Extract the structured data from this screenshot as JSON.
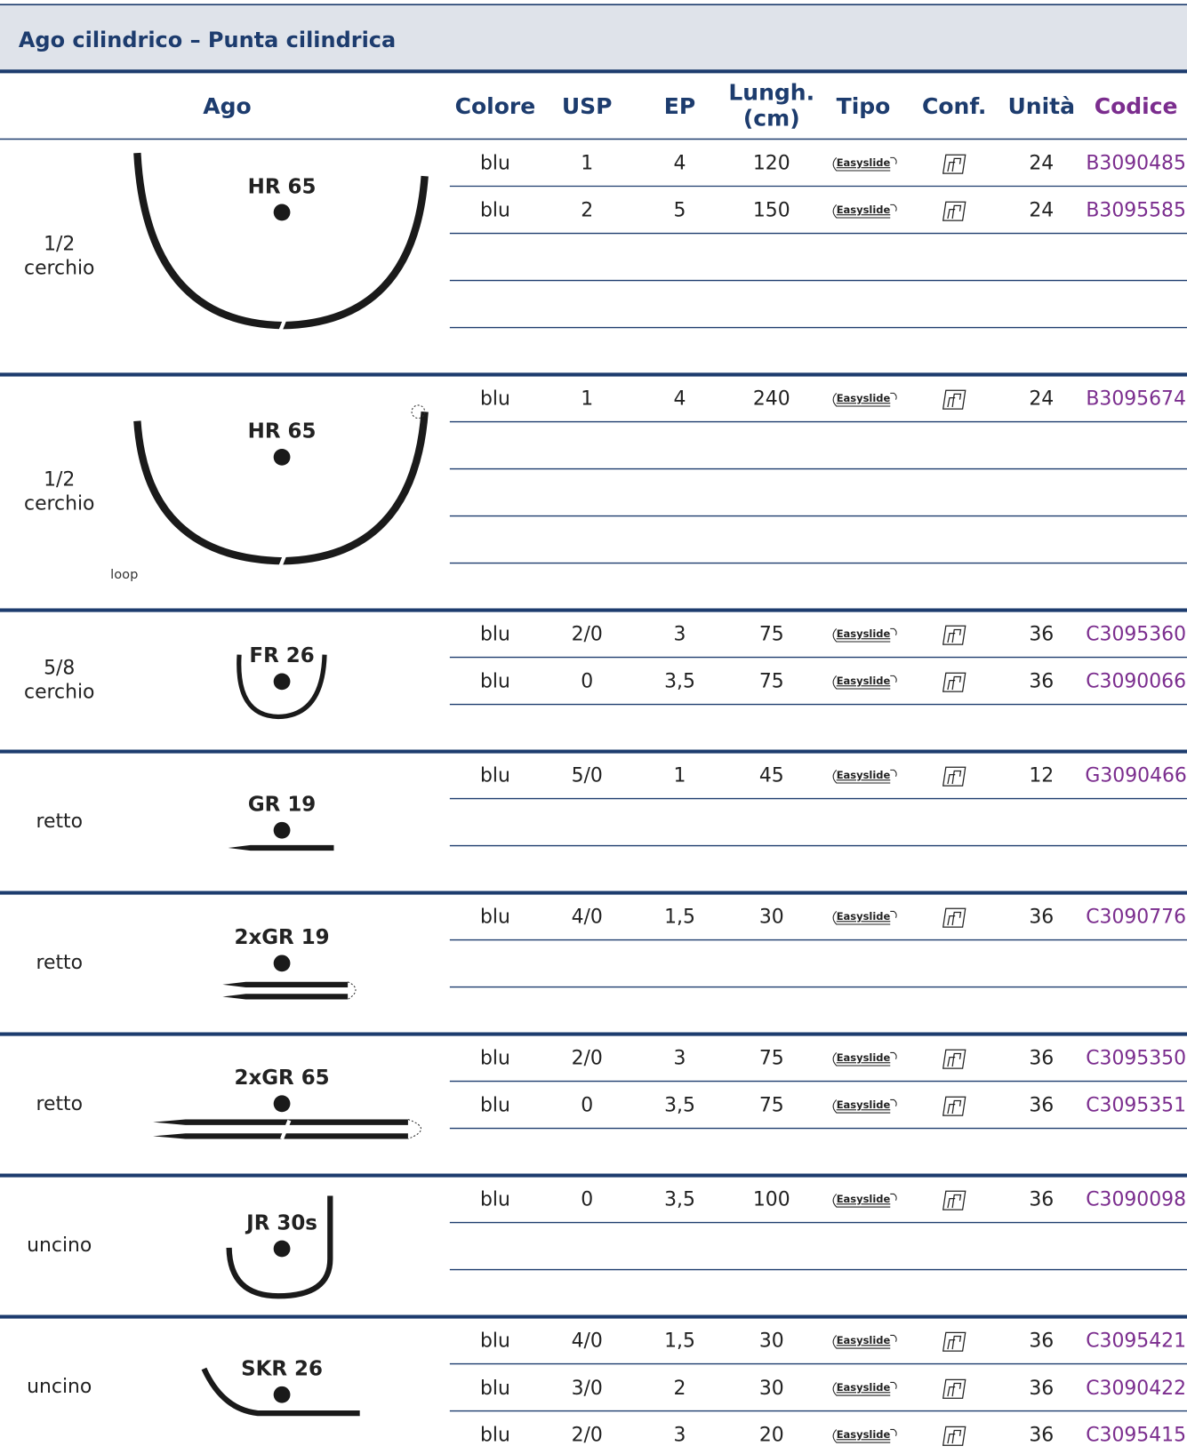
{
  "header": {
    "title": "Ago cilindrico – Punta cilindrica"
  },
  "table": {
    "columns": [
      "Ago",
      "Colore",
      "USP",
      "EP",
      [
        "Lungh.",
        "(cm)"
      ],
      "Tipo",
      "Conf.",
      "Unità",
      "Codice"
    ],
    "groups": [
      {
        "shape": [
          "1/2",
          "cerchio"
        ],
        "needle": "HR 65",
        "rows": [
          [
            "blu",
            "1",
            "4",
            "120",
            "Easyslide",
            "24",
            "B3090485"
          ],
          [
            "blu",
            "2",
            "5",
            "150",
            "Easyslide",
            "24",
            "B3095585"
          ]
        ]
      },
      {
        "shape": [
          "1/2",
          "cerchio"
        ],
        "needle": "HR 65",
        "note": "loop",
        "rows": [
          [
            "blu",
            "1",
            "4",
            "240",
            "Easyslide",
            "24",
            "B3095674"
          ]
        ]
      },
      {
        "shape": [
          "5/8",
          "cerchio"
        ],
        "needle": "FR 26",
        "rows": [
          [
            "blu",
            "2/0",
            "3",
            "75",
            "Easyslide",
            "36",
            "C3095360"
          ],
          [
            "blu",
            "0",
            "3,5",
            "75",
            "Easyslide",
            "36",
            "C3090066"
          ]
        ]
      },
      {
        "shape": [
          "retto"
        ],
        "needle": "GR 19",
        "rows": [
          [
            "blu",
            "5/0",
            "1",
            "45",
            "Easyslide",
            "12",
            "G3090466"
          ]
        ]
      },
      {
        "shape": [
          "retto"
        ],
        "needle": "2xGR 19",
        "rows": [
          [
            "blu",
            "4/0",
            "1,5",
            "30",
            "Easyslide",
            "36",
            "C3090776"
          ]
        ]
      },
      {
        "shape": [
          "retto"
        ],
        "needle": "2xGR 65",
        "rows": [
          [
            "blu",
            "2/0",
            "3",
            "75",
            "Easyslide",
            "36",
            "C3095350"
          ],
          [
            "blu",
            "0",
            "3,5",
            "75",
            "Easyslide",
            "36",
            "C3095351"
          ]
        ]
      },
      {
        "shape": [
          "uncino"
        ],
        "needle": "JR 30s",
        "rows": [
          [
            "blu",
            "0",
            "3,5",
            "100",
            "Easyslide",
            "36",
            "C3090098"
          ]
        ]
      },
      {
        "shape": [
          "uncino"
        ],
        "needle": "SKR 26",
        "rows": [
          [
            "blu",
            "4/0",
            "1,5",
            "30",
            "Easyslide",
            "36",
            "C3095421"
          ],
          [
            "blu",
            "3/0",
            "2",
            "30",
            "Easyslide",
            "36",
            "C3090422"
          ],
          [
            "blu",
            "2/0",
            "3",
            "20",
            "Easyslide",
            "36",
            "C3095415"
          ]
        ]
      }
    ]
  }
}
